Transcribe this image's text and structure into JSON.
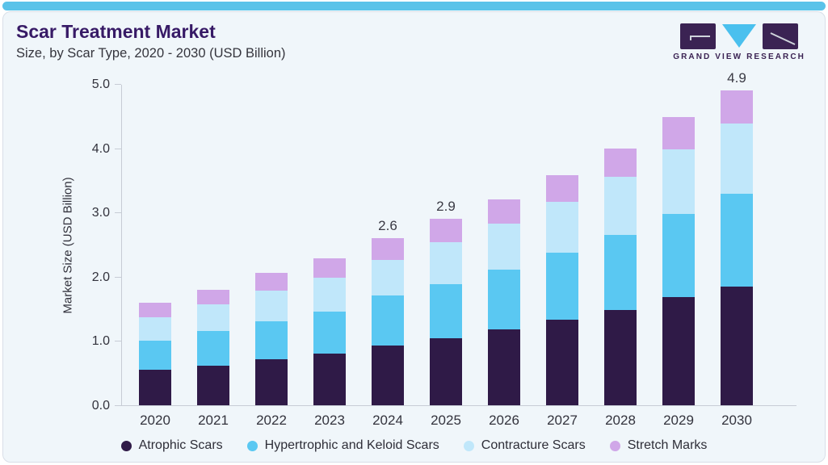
{
  "theme": {
    "accent_bar_color": "#5ac3e9",
    "card_background": "#f0f6fa",
    "card_border": "#d9dfe8",
    "axis_color": "#c7ccd5",
    "text_color": "#32323c",
    "title_color": "#371a66"
  },
  "header": {
    "title": "Scar Treatment Market",
    "subtitle": "Size, by Scar Type, 2020 - 2030 (USD Billion)",
    "logo": {
      "text": "GRAND VIEW RESEARCH",
      "purple": "#3b2353",
      "blue": "#4ac0ee"
    }
  },
  "chart_data": {
    "type": "bar",
    "stacked": true,
    "title": "Scar Treatment Market Size, by Scar Type, 2020 - 2030 (USD Billion)",
    "categories": [
      2020,
      2021,
      2022,
      2023,
      2024,
      2025,
      2026,
      2027,
      2028,
      2029,
      2030
    ],
    "series": [
      {
        "name": "Atrophic Scars",
        "color": "#2f1a47",
        "values": [
          0.55,
          0.62,
          0.71,
          0.8,
          0.93,
          1.04,
          1.18,
          1.33,
          1.48,
          1.68,
          1.85
        ]
      },
      {
        "name": "Hypertrophic and Keloid Scars",
        "color": "#5ac8f2",
        "values": [
          0.45,
          0.53,
          0.6,
          0.66,
          0.78,
          0.84,
          0.93,
          1.04,
          1.17,
          1.3,
          1.44
        ]
      },
      {
        "name": "Contracture Scars",
        "color": "#c0e7fa",
        "values": [
          0.37,
          0.42,
          0.47,
          0.52,
          0.55,
          0.66,
          0.72,
          0.8,
          0.9,
          1.0,
          1.09
        ]
      },
      {
        "name": "Stretch Marks",
        "color": "#d0a7e8",
        "values": [
          0.22,
          0.23,
          0.28,
          0.31,
          0.34,
          0.36,
          0.37,
          0.41,
          0.44,
          0.5,
          0.52
        ]
      }
    ],
    "total_labels": {
      "2024": "2.6",
      "2025": "2.9",
      "2030": "4.9"
    },
    "xlabel": "",
    "ylabel": "Market Size (USD Billion)",
    "yticks": [
      "0.0",
      "1.0",
      "2.0",
      "3.0",
      "4.0",
      "5.0"
    ],
    "ylim": [
      0,
      5
    ],
    "grid": false,
    "legend_position": "bottom"
  }
}
